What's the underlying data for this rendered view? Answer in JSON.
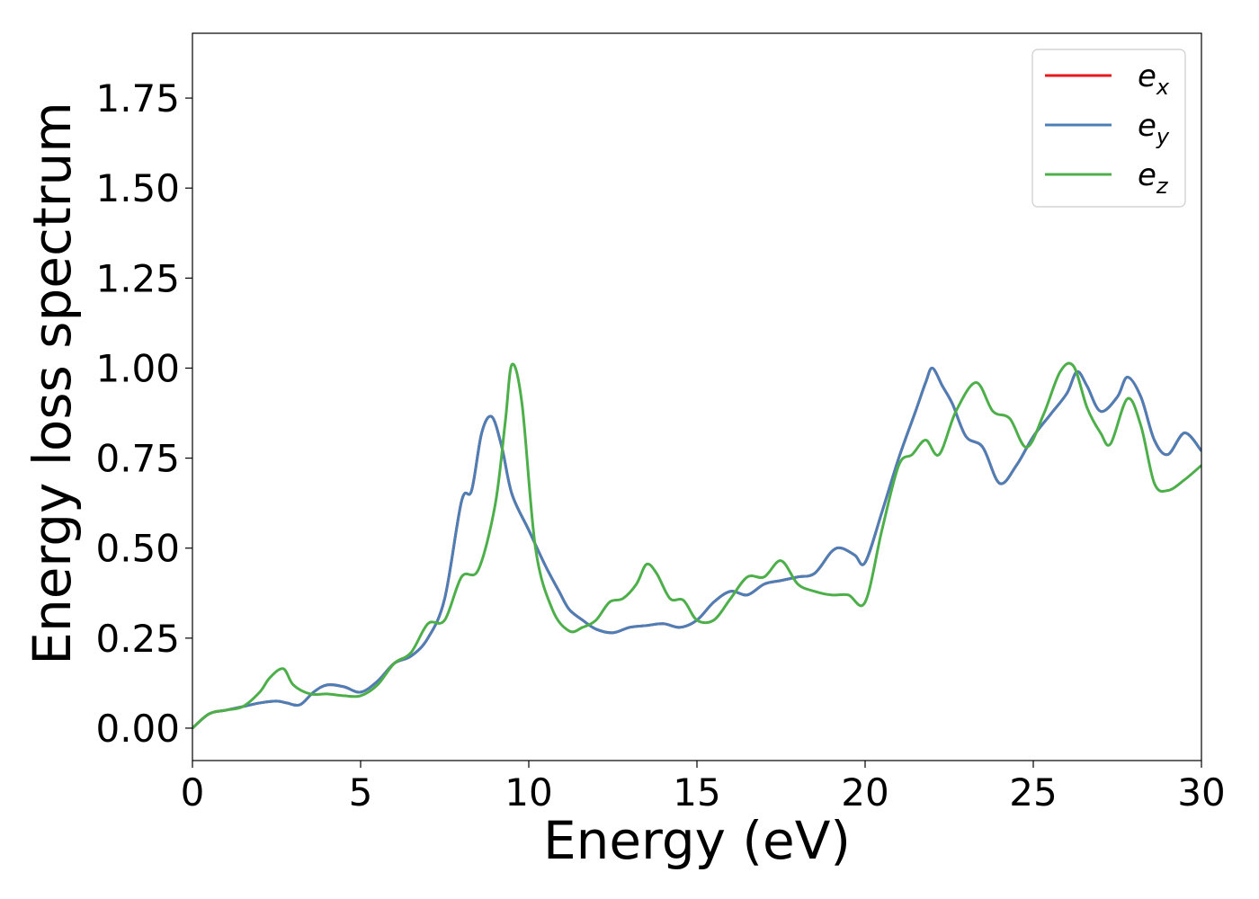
{
  "chart_data": {
    "type": "line",
    "title": "",
    "xlabel": "Energy (eV)",
    "ylabel": "Energy loss spectrum",
    "xlim": [
      0,
      30
    ],
    "ylim": [
      -0.09,
      1.93
    ],
    "xticks": [
      "0",
      "5",
      "10",
      "15",
      "20",
      "25",
      "30"
    ],
    "yticks": [
      "0.00",
      "0.25",
      "0.50",
      "0.75",
      "1.00",
      "1.25",
      "1.50",
      "1.75"
    ],
    "grid": false,
    "legend_position": "top-right",
    "series": [
      {
        "name": "e_x",
        "label_base": "e",
        "label_sub": "x",
        "color": "#e41a1c",
        "x": [
          0,
          0.5,
          1,
          1.5,
          2,
          2.5,
          2.8,
          3.2,
          3.6,
          4,
          4.5,
          5,
          5.5,
          6,
          6.5,
          7,
          7.5,
          8,
          8.3,
          8.6,
          8.9,
          9.2,
          9.5,
          10,
          10.5,
          10.9,
          11.2,
          11.6,
          12,
          12.5,
          13,
          13.5,
          14,
          14.5,
          15,
          15.5,
          16,
          16.5,
          17,
          17.5,
          18,
          18.5,
          19,
          19.3,
          19.7,
          20,
          20.5,
          21,
          21.5,
          21.8,
          22,
          22.3,
          22.6,
          23,
          23.5,
          24,
          24.5,
          25,
          25.5,
          26,
          26.3,
          26.6,
          27,
          27.5,
          27.8,
          28.2,
          28.6,
          29,
          29.5,
          30
        ],
        "y": [
          0,
          0.04,
          0.05,
          0.06,
          0.07,
          0.075,
          0.07,
          0.065,
          0.1,
          0.12,
          0.115,
          0.1,
          0.13,
          0.18,
          0.2,
          0.25,
          0.36,
          0.63,
          0.66,
          0.82,
          0.865,
          0.78,
          0.65,
          0.55,
          0.45,
          0.38,
          0.33,
          0.3,
          0.275,
          0.265,
          0.28,
          0.285,
          0.29,
          0.28,
          0.3,
          0.35,
          0.38,
          0.37,
          0.4,
          0.41,
          0.42,
          0.43,
          0.49,
          0.5,
          0.48,
          0.46,
          0.6,
          0.75,
          0.88,
          0.96,
          1.0,
          0.95,
          0.9,
          0.81,
          0.78,
          0.68,
          0.73,
          0.81,
          0.87,
          0.93,
          0.99,
          0.95,
          0.88,
          0.92,
          0.975,
          0.92,
          0.8,
          0.76,
          0.82,
          0.77
        ]
      },
      {
        "name": "e_y",
        "label_base": "e",
        "label_sub": "y",
        "color": "#4d7fb7",
        "x": [
          0,
          0.5,
          1,
          1.5,
          2,
          2.5,
          2.8,
          3.2,
          3.6,
          4,
          4.5,
          5,
          5.5,
          6,
          6.5,
          7,
          7.5,
          8,
          8.3,
          8.6,
          8.9,
          9.2,
          9.5,
          10,
          10.5,
          10.9,
          11.2,
          11.6,
          12,
          12.5,
          13,
          13.5,
          14,
          14.5,
          15,
          15.5,
          16,
          16.5,
          17,
          17.5,
          18,
          18.5,
          19,
          19.3,
          19.7,
          20,
          20.5,
          21,
          21.5,
          21.8,
          22,
          22.3,
          22.6,
          23,
          23.5,
          24,
          24.5,
          25,
          25.5,
          26,
          26.3,
          26.6,
          27,
          27.5,
          27.8,
          28.2,
          28.6,
          29,
          29.5,
          30
        ],
        "y": [
          0,
          0.04,
          0.05,
          0.06,
          0.07,
          0.075,
          0.07,
          0.065,
          0.1,
          0.12,
          0.115,
          0.1,
          0.13,
          0.18,
          0.2,
          0.25,
          0.36,
          0.63,
          0.66,
          0.82,
          0.865,
          0.78,
          0.65,
          0.55,
          0.45,
          0.38,
          0.33,
          0.3,
          0.275,
          0.265,
          0.28,
          0.285,
          0.29,
          0.28,
          0.3,
          0.35,
          0.38,
          0.37,
          0.4,
          0.41,
          0.42,
          0.43,
          0.49,
          0.5,
          0.48,
          0.46,
          0.6,
          0.75,
          0.88,
          0.96,
          1.0,
          0.95,
          0.9,
          0.81,
          0.78,
          0.68,
          0.73,
          0.81,
          0.87,
          0.93,
          0.99,
          0.95,
          0.88,
          0.92,
          0.975,
          0.92,
          0.8,
          0.76,
          0.82,
          0.77
        ]
      },
      {
        "name": "e_z",
        "label_base": "e",
        "label_sub": "z",
        "color": "#4daf4a",
        "x": [
          0,
          0.5,
          1,
          1.5,
          2,
          2.3,
          2.7,
          3,
          3.5,
          4,
          4.5,
          5,
          5.5,
          6,
          6.5,
          7,
          7.5,
          8,
          8.5,
          9,
          9.3,
          9.5,
          9.8,
          10.2,
          10.7,
          11.2,
          11.6,
          12,
          12.4,
          12.8,
          13.2,
          13.5,
          13.8,
          14.2,
          14.6,
          15,
          15.5,
          16,
          16.5,
          17,
          17.5,
          18,
          18.5,
          19,
          19.5,
          20,
          20.5,
          21,
          21.4,
          21.8,
          22.2,
          22.7,
          23.3,
          23.8,
          24.3,
          24.8,
          25.3,
          25.8,
          26.2,
          26.6,
          27,
          27.3,
          27.8,
          28.2,
          28.6,
          29,
          29.5,
          30
        ],
        "y": [
          0,
          0.04,
          0.05,
          0.06,
          0.1,
          0.14,
          0.165,
          0.12,
          0.095,
          0.095,
          0.09,
          0.09,
          0.12,
          0.18,
          0.21,
          0.29,
          0.3,
          0.42,
          0.44,
          0.62,
          0.85,
          1.01,
          0.9,
          0.5,
          0.33,
          0.27,
          0.28,
          0.3,
          0.35,
          0.36,
          0.4,
          0.455,
          0.43,
          0.36,
          0.355,
          0.3,
          0.3,
          0.36,
          0.42,
          0.42,
          0.465,
          0.4,
          0.38,
          0.37,
          0.37,
          0.35,
          0.55,
          0.73,
          0.76,
          0.8,
          0.76,
          0.88,
          0.96,
          0.88,
          0.86,
          0.78,
          0.87,
          0.99,
          1.005,
          0.89,
          0.82,
          0.79,
          0.915,
          0.84,
          0.68,
          0.66,
          0.69,
          0.73
        ]
      }
    ]
  }
}
